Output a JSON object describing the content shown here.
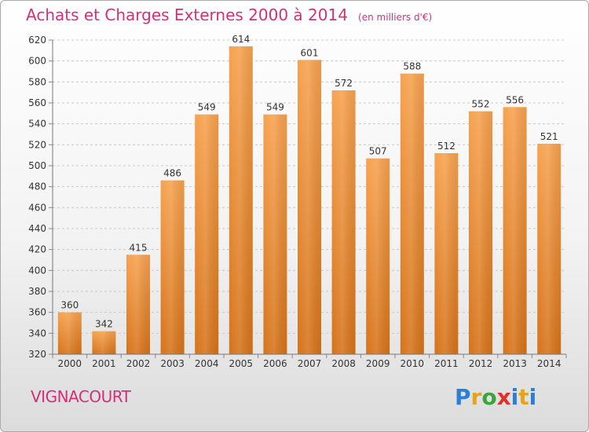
{
  "header": {
    "title": "Achats et Charges Externes 2000 à 2014",
    "unit": "(en milliers d'€)"
  },
  "footer": {
    "commune": "VIGNACOURT",
    "logo_letters": [
      "P",
      "r",
      "o",
      "x",
      "i",
      "t",
      "i"
    ]
  },
  "colors": {
    "title": "#d4307a",
    "bar_top": "#f7a24f",
    "bar_bottom": "#d6731a",
    "grid": "#c8c8c8"
  },
  "chart_data": {
    "type": "bar",
    "title": "Achats et Charges Externes 2000 à 2014",
    "subtitle": "(en milliers d'€)",
    "xlabel": "",
    "ylabel": "",
    "categories": [
      "2000",
      "2001",
      "2002",
      "2003",
      "2004",
      "2005",
      "2006",
      "2007",
      "2008",
      "2009",
      "2010",
      "2011",
      "2012",
      "2013",
      "2014"
    ],
    "values": [
      360,
      342,
      415,
      486,
      549,
      614,
      549,
      601,
      572,
      507,
      588,
      512,
      552,
      556,
      521
    ],
    "ylim": [
      320,
      620
    ],
    "yticks": [
      320,
      340,
      360,
      380,
      400,
      420,
      440,
      460,
      480,
      500,
      520,
      540,
      560,
      580,
      600,
      620
    ],
    "grid": true,
    "data_labels": true
  }
}
